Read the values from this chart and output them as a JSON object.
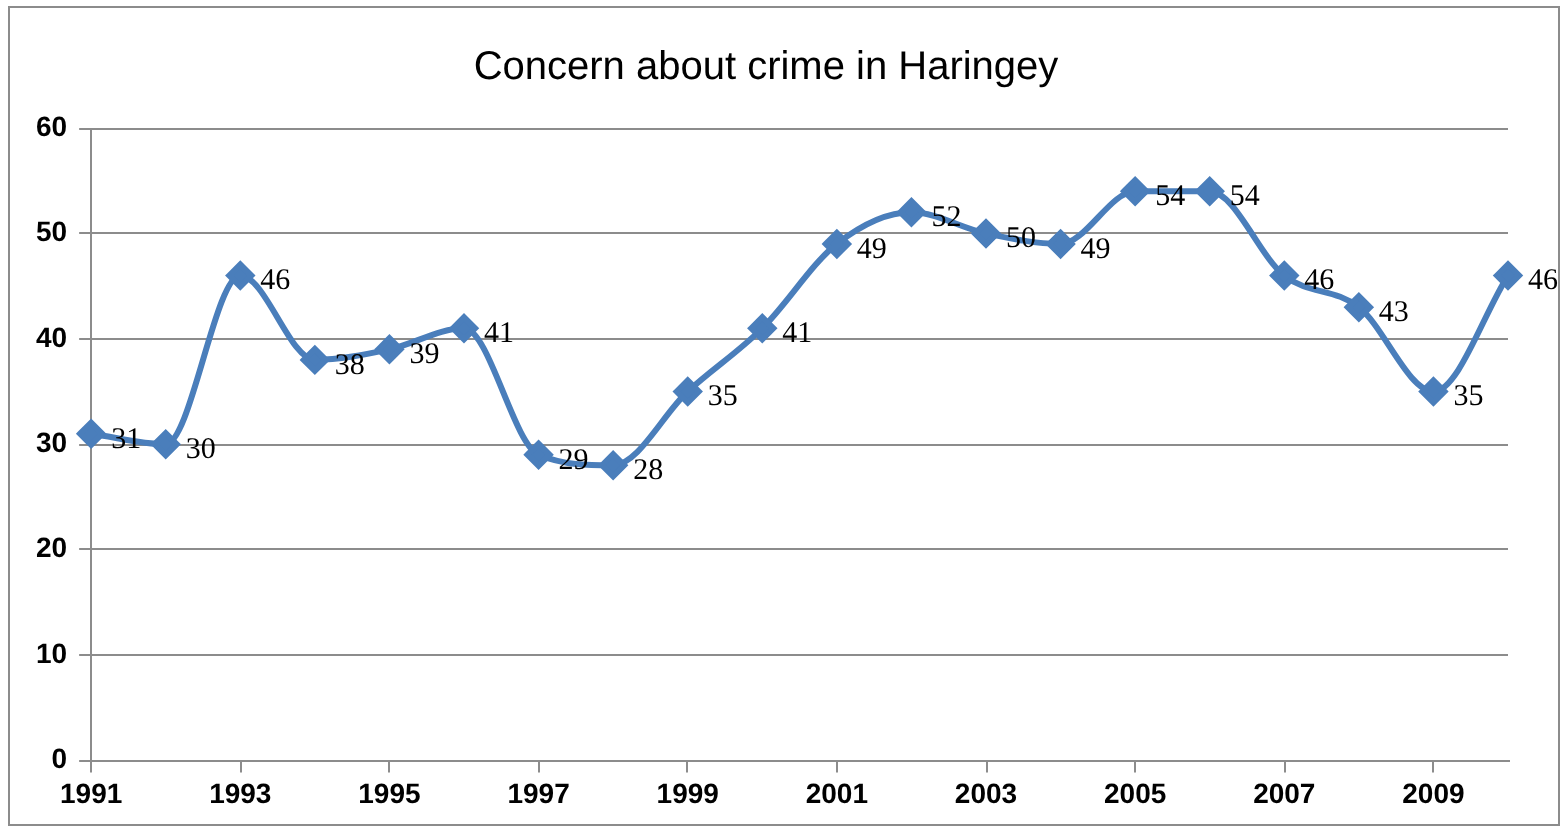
{
  "chart_data": {
    "type": "line",
    "title": "Concern about crime in Haringey",
    "categories": [
      "1991",
      null,
      "1993",
      null,
      "1995",
      null,
      "1997",
      null,
      "1999",
      null,
      "2001",
      null,
      "2003",
      null,
      "2005",
      null,
      "2007",
      null,
      "2009",
      null
    ],
    "series": [
      {
        "color": "#4a7ebb",
        "values": [
          31,
          30,
          46,
          38,
          39,
          41,
          29,
          28,
          35,
          41,
          49,
          52,
          50,
          49,
          54,
          54,
          46,
          43,
          35,
          46
        ]
      }
    ],
    "ylim": [
      0,
      60
    ],
    "yticks": [
      0,
      10,
      20,
      30,
      40,
      50,
      60
    ],
    "grid": "y",
    "marker": "diamond",
    "line_style": "solid",
    "data_labels": true
  }
}
